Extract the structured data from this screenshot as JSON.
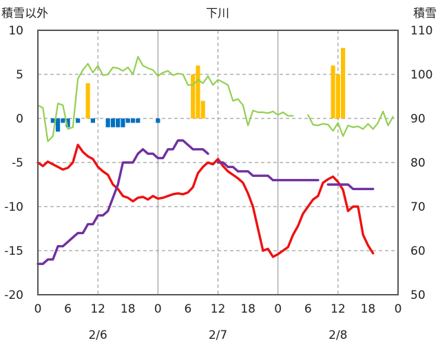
{
  "chart_data": {
    "type": "line",
    "title": "下川",
    "ylabel_left": "積雪以外",
    "ylabel_right": "積雪",
    "ylim_left": [
      -20,
      10
    ],
    "ylim_right": [
      50,
      110
    ],
    "yticks_left": [
      "10",
      "5",
      "0",
      "-5",
      "-10",
      "-15",
      "-20"
    ],
    "yticks_right": [
      "110",
      "100",
      "90",
      "80",
      "70",
      "60",
      "50"
    ],
    "x_range_hours": [
      0,
      72
    ],
    "xtick_labels": [
      "0",
      "6",
      "12",
      "18",
      "0",
      "6",
      "12",
      "18",
      "0",
      "6",
      "12",
      "18",
      "0"
    ],
    "day_labels": [
      "2/6",
      "2/7",
      "2/8"
    ],
    "grid": "dashed vertical every 12h, dashed horizontal at 5-unit steps, solid vertical at day boundaries",
    "series": [
      {
        "key": "red_line",
        "axis": "left",
        "color": "#ee1111",
        "values": [
          [
            0,
            -5
          ],
          [
            1,
            -5.4
          ],
          [
            2,
            -4.9
          ],
          [
            3,
            -5.2
          ],
          [
            4,
            -5.5
          ],
          [
            5,
            -5.8
          ],
          [
            6,
            -5.6
          ],
          [
            7,
            -5
          ],
          [
            8,
            -3
          ],
          [
            9,
            -3.8
          ],
          [
            10,
            -4.3
          ],
          [
            11,
            -4.6
          ],
          [
            12,
            -5.5
          ],
          [
            13,
            -6
          ],
          [
            14,
            -6.4
          ],
          [
            15,
            -7.5
          ],
          [
            16,
            -8
          ],
          [
            17,
            -8.8
          ],
          [
            18,
            -9
          ],
          [
            19,
            -9.4
          ],
          [
            20,
            -9
          ],
          [
            21,
            -8.9
          ],
          [
            22,
            -9.2
          ],
          [
            23,
            -8.8
          ],
          [
            24,
            -9.1
          ],
          [
            25,
            -9
          ],
          [
            26,
            -8.8
          ],
          [
            27,
            -8.6
          ],
          [
            28,
            -8.5
          ],
          [
            29,
            -8.6
          ],
          [
            30,
            -8.4
          ],
          [
            31,
            -7.8
          ],
          [
            32,
            -6.2
          ],
          [
            33,
            -5.5
          ],
          [
            34,
            -5
          ],
          [
            35,
            -5.2
          ],
          [
            36,
            -4.6
          ],
          [
            37,
            -5.4
          ],
          [
            38,
            -6
          ],
          [
            39,
            -6.4
          ],
          [
            40,
            -6.8
          ],
          [
            41,
            -7.3
          ],
          [
            42,
            -8.5
          ],
          [
            43,
            -10
          ],
          [
            44,
            -12.5
          ],
          [
            45,
            -15
          ],
          [
            46,
            -14.8
          ],
          [
            47,
            -15.7
          ],
          [
            48,
            -15.4
          ],
          [
            49,
            -15
          ],
          [
            50,
            -14.6
          ],
          [
            51,
            -13.2
          ],
          [
            52,
            -12.2
          ],
          [
            53,
            -10.8
          ],
          [
            54,
            -10
          ],
          [
            55,
            -9.2
          ],
          [
            56,
            -8.8
          ],
          [
            57,
            -7.3
          ],
          [
            58,
            -6.9
          ],
          [
            59,
            -6.6
          ],
          [
            60,
            -7.2
          ],
          [
            61,
            -8.1
          ],
          [
            62,
            -10.5
          ],
          [
            63,
            -10
          ],
          [
            64,
            -10
          ],
          [
            65,
            -13.2
          ],
          [
            66,
            -14.4
          ],
          [
            67,
            -15.3
          ]
        ]
      },
      {
        "key": "purple_line",
        "axis": "right",
        "color": "#7030a0",
        "segments": [
          [
            [
              0,
              57
            ],
            [
              1,
              57
            ],
            [
              2,
              58
            ],
            [
              3,
              58
            ],
            [
              4,
              61
            ],
            [
              5,
              61
            ],
            [
              6,
              62
            ],
            [
              7,
              63
            ],
            [
              8,
              64
            ],
            [
              9,
              64
            ],
            [
              10,
              66
            ],
            [
              11,
              66
            ],
            [
              12,
              68
            ],
            [
              13,
              68
            ],
            [
              14,
              69
            ],
            [
              15,
              72
            ],
            [
              16,
              75
            ],
            [
              17,
              80
            ],
            [
              18,
              80
            ],
            [
              19,
              80
            ],
            [
              20,
              82
            ],
            [
              21,
              83
            ],
            [
              22,
              82
            ],
            [
              23,
              82
            ],
            [
              24,
              81
            ],
            [
              25,
              81
            ],
            [
              26,
              83
            ],
            [
              27,
              83
            ],
            [
              28,
              85
            ],
            [
              29,
              85
            ],
            [
              30,
              84
            ],
            [
              31,
              83
            ],
            [
              32,
              83
            ],
            [
              33,
              83
            ],
            [
              34,
              82
            ]
          ],
          [
            [
              36,
              80
            ],
            [
              37,
              80
            ],
            [
              38,
              79
            ],
            [
              39,
              79
            ],
            [
              40,
              78
            ],
            [
              41,
              78
            ],
            [
              42,
              78
            ],
            [
              43,
              77
            ],
            [
              44,
              77
            ],
            [
              45,
              77
            ],
            [
              46,
              77
            ],
            [
              47,
              76
            ],
            [
              48,
              76
            ],
            [
              49,
              76
            ],
            [
              50,
              76
            ],
            [
              51,
              76
            ],
            [
              52,
              76
            ],
            [
              53,
              76
            ],
            [
              54,
              76
            ],
            [
              55,
              76
            ],
            [
              56,
              76
            ]
          ],
          [
            [
              58,
              75
            ],
            [
              59,
              75
            ],
            [
              60,
              75
            ],
            [
              61,
              75
            ],
            [
              62,
              75
            ],
            [
              63,
              74
            ],
            [
              64,
              74
            ],
            [
              65,
              74
            ],
            [
              66,
              74
            ],
            [
              67,
              74
            ]
          ]
        ]
      },
      {
        "key": "green_line",
        "axis": "left",
        "color": "#92d050",
        "segments": [
          [
            [
              0,
              1.5
            ],
            [
              1,
              1.2
            ],
            [
              2,
              -2.6
            ],
            [
              3,
              -2
            ],
            [
              4,
              1.7
            ],
            [
              5,
              1.5
            ],
            [
              6,
              -1.2
            ],
            [
              7,
              -1
            ],
            [
              8,
              4.5
            ],
            [
              9,
              5.5
            ],
            [
              10,
              6.2
            ],
            [
              11,
              5.2
            ],
            [
              12,
              6
            ],
            [
              13,
              4.9
            ],
            [
              14,
              5
            ],
            [
              15,
              5.8
            ],
            [
              16,
              5.7
            ],
            [
              17,
              5.4
            ],
            [
              18,
              5.8
            ],
            [
              19,
              5
            ],
            [
              20,
              7
            ],
            [
              21,
              6
            ],
            [
              22,
              5.7
            ],
            [
              23,
              5.5
            ],
            [
              24,
              4.8
            ],
            [
              25,
              5.2
            ],
            [
              26,
              5.4
            ],
            [
              27,
              4.9
            ],
            [
              28,
              5.1
            ],
            [
              29,
              5
            ],
            [
              30,
              3.8
            ],
            [
              31,
              3.8
            ],
            [
              32,
              4.4
            ],
            [
              33,
              4
            ],
            [
              34,
              4.8
            ],
            [
              35,
              3.8
            ],
            [
              36,
              4.4
            ],
            [
              37,
              4.1
            ],
            [
              38,
              3.8
            ],
            [
              39,
              2
            ],
            [
              40,
              2.2
            ],
            [
              41,
              1.5
            ],
            [
              42,
              -0.8
            ],
            [
              43,
              0.9
            ],
            [
              44,
              0.7
            ],
            [
              45,
              0.7
            ],
            [
              46,
              0.6
            ],
            [
              47,
              0.8
            ],
            [
              48,
              0.4
            ],
            [
              49,
              0.7
            ],
            [
              50,
              0.3
            ],
            [
              51,
              0.3
            ]
          ],
          [
            [
              54,
              0.4
            ],
            [
              55,
              -0.7
            ],
            [
              56,
              -0.8
            ],
            [
              57,
              -0.6
            ],
            [
              58,
              -0.7
            ],
            [
              59,
              -1.4
            ],
            [
              60,
              -0.5
            ],
            [
              61,
              -2
            ],
            [
              62,
              -0.8
            ],
            [
              63,
              -1
            ],
            [
              64,
              -0.9
            ],
            [
              65,
              -1.2
            ],
            [
              66,
              -0.6
            ],
            [
              67,
              -1.2
            ],
            [
              68,
              -0.5
            ],
            [
              69,
              0.8
            ],
            [
              70,
              -0.8
            ],
            [
              71,
              0.2
            ]
          ]
        ]
      },
      {
        "key": "yellow_bars",
        "axis": "left",
        "color": "#ffc000",
        "values": [
          [
            10,
            4
          ],
          [
            31,
            5
          ],
          [
            32,
            6
          ],
          [
            33,
            2
          ],
          [
            59,
            6
          ],
          [
            60,
            5
          ],
          [
            61,
            8
          ]
        ]
      },
      {
        "key": "blue_bars",
        "axis": "left",
        "color": "#0070c0",
        "values": [
          [
            3,
            -0.5
          ],
          [
            4,
            -1.5
          ],
          [
            5,
            -0.5
          ],
          [
            6,
            -1
          ],
          [
            8,
            -0.5
          ],
          [
            11,
            -0.5
          ],
          [
            14,
            -1
          ],
          [
            15,
            -1
          ],
          [
            16,
            -1
          ],
          [
            17,
            -1
          ],
          [
            18,
            -0.5
          ],
          [
            19,
            -0.5
          ],
          [
            20,
            -0.5
          ],
          [
            24,
            -0.5
          ]
        ]
      }
    ]
  }
}
